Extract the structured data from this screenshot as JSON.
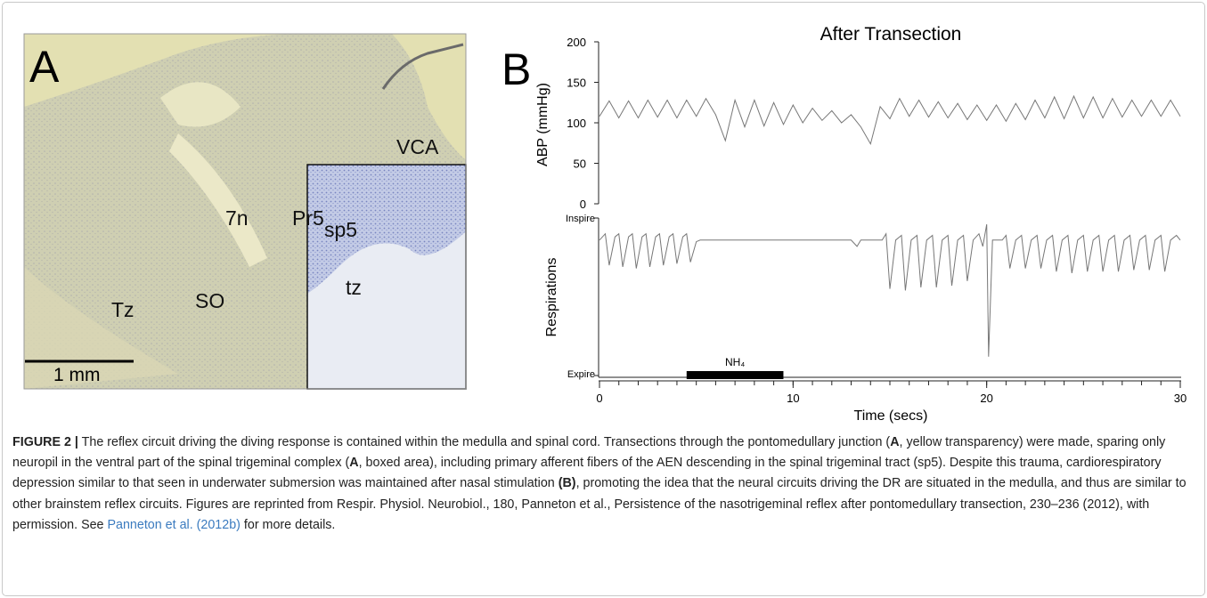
{
  "panel_a": {
    "label": "A",
    "regions": [
      "VCA",
      "7n",
      "Pr5",
      "sp5",
      "tz",
      "Tz",
      "SO"
    ],
    "scale_bar": "1 mm"
  },
  "panel_b_label": "B",
  "chart_data": [
    {
      "type": "line",
      "title": "After Transection",
      "y_label": "ABP (mmHg)",
      "color": "#777777",
      "x": [
        0,
        0.5,
        1,
        1.5,
        2,
        2.5,
        3,
        3.5,
        4,
        4.5,
        5,
        5.5,
        6,
        6.5,
        7,
        7.5,
        8,
        8.5,
        9,
        9.5,
        10,
        10.5,
        11,
        11.5,
        12,
        12.5,
        13,
        13.5,
        14,
        14.5,
        15,
        15.5,
        16,
        16.5,
        17,
        17.5,
        18,
        18.5,
        19,
        19.5,
        20,
        20.5,
        21,
        21.5,
        22,
        22.5,
        23,
        23.5,
        24,
        24.5,
        25,
        25.5,
        26,
        26.5,
        27,
        27.5,
        28,
        28.5,
        29,
        29.5,
        30
      ],
      "values": [
        108,
        127,
        106,
        127,
        106,
        128,
        107,
        128,
        106,
        128,
        108,
        130,
        110,
        78,
        128,
        95,
        128,
        96,
        125,
        98,
        122,
        100,
        118,
        103,
        115,
        100,
        110,
        95,
        74,
        120,
        105,
        130,
        108,
        128,
        107,
        126,
        106,
        124,
        104,
        122,
        103,
        122,
        102,
        124,
        104,
        128,
        106,
        132,
        105,
        133,
        106,
        132,
        106,
        130,
        107,
        128,
        108,
        128,
        108,
        128,
        108
      ],
      "xlim": [
        0,
        30
      ],
      "ylim": [
        0,
        200
      ],
      "yticks": [
        0,
        50,
        100,
        150,
        200
      ]
    },
    {
      "type": "line",
      "y_label": "Respirations",
      "x_label": "Time (secs)",
      "color": "#777777",
      "x": [
        0,
        0.3,
        0.5,
        0.8,
        1.0,
        1.2,
        1.5,
        1.7,
        1.9,
        2.2,
        2.4,
        2.6,
        2.9,
        3.1,
        3.3,
        3.6,
        3.8,
        4.0,
        4.3,
        4.5,
        4.7,
        5.0,
        5.2,
        13.0,
        13.3,
        13.5,
        14.6,
        14.8,
        15.0,
        15.3,
        15.6,
        15.8,
        16.1,
        16.4,
        16.6,
        16.9,
        17.2,
        17.4,
        17.7,
        18.0,
        18.2,
        18.5,
        18.8,
        19.0,
        19.3,
        19.6,
        19.8,
        20.0,
        20.1,
        20.3,
        20.8,
        21.0,
        21.2,
        21.5,
        21.8,
        22.0,
        22.3,
        22.6,
        22.8,
        23.1,
        23.4,
        23.6,
        23.9,
        24.2,
        24.4,
        24.7,
        25.0,
        25.2,
        25.5,
        25.8,
        26.0,
        26.3,
        26.6,
        26.8,
        27.1,
        27.4,
        27.6,
        27.9,
        28.2,
        28.4,
        28.7,
        29.0,
        29.2,
        29.5,
        29.8,
        30
      ],
      "values": [
        86,
        90,
        70,
        88,
        90,
        69,
        88,
        90,
        68,
        88,
        90,
        69,
        88,
        90,
        70,
        88,
        90,
        71,
        88,
        90,
        72,
        85,
        86,
        86,
        82,
        86,
        86,
        90,
        55,
        86,
        89,
        54,
        86,
        89,
        56,
        86,
        89,
        56,
        86,
        89,
        57,
        86,
        89,
        60,
        86,
        90,
        82,
        96,
        12,
        86,
        86,
        89,
        68,
        86,
        89,
        68,
        86,
        89,
        68,
        86,
        89,
        66,
        86,
        89,
        65,
        86,
        89,
        66,
        86,
        89,
        66,
        86,
        89,
        66,
        86,
        89,
        67,
        86,
        89,
        67,
        86,
        89,
        66,
        86,
        89,
        86
      ],
      "xlim": [
        0,
        30
      ],
      "ylim": [
        0,
        100
      ],
      "yticks": [
        {
          "value": 0,
          "label": "Expire"
        },
        {
          "value": 100,
          "label": "Inspire"
        }
      ],
      "xticks": [
        0,
        10,
        20,
        30
      ],
      "minor_xticks": [
        0,
        1,
        2,
        3,
        4,
        5,
        6,
        7,
        8,
        9,
        10,
        11,
        12,
        13,
        14,
        15,
        16,
        17,
        18,
        19,
        20,
        21,
        22,
        23,
        24,
        25,
        26,
        27,
        28,
        29,
        30
      ],
      "stimulus": {
        "label": "NH₄",
        "start": 4.5,
        "end": 9.5
      }
    }
  ],
  "caption": {
    "figure_label": "FIGURE 2 |",
    "text_1": " The reflex circuit driving the diving response is contained within the medulla and spinal cord. Transections through the pontomedullary junction (",
    "bold_1": "A",
    "text_2": ", yellow transparency) were made, sparing only neuropil in the ventral part of the spinal trigeminal complex (",
    "bold_2": "A",
    "text_3": ", boxed area), including primary afferent fibers of the AEN descending in the spinal trigeminal tract (sp5). Despite this trauma, cardiorespiratory depression similar to that seen in underwater submersion was maintained after nasal stimulation ",
    "bold_3": "(B)",
    "text_4": ", promoting the idea that the neural circuits driving the DR are situated in the medulla, and thus are similar to other brainstem reflex circuits. Figures are reprinted from Respir. Physiol. Neurobiol., 180, Panneton et al., Persistence of the nasotrigeminal reflex after pontomedullary transection, 230–236 (2012), with permission. See ",
    "link": "Panneton et al. (2012b)",
    "text_5": " for more details."
  }
}
